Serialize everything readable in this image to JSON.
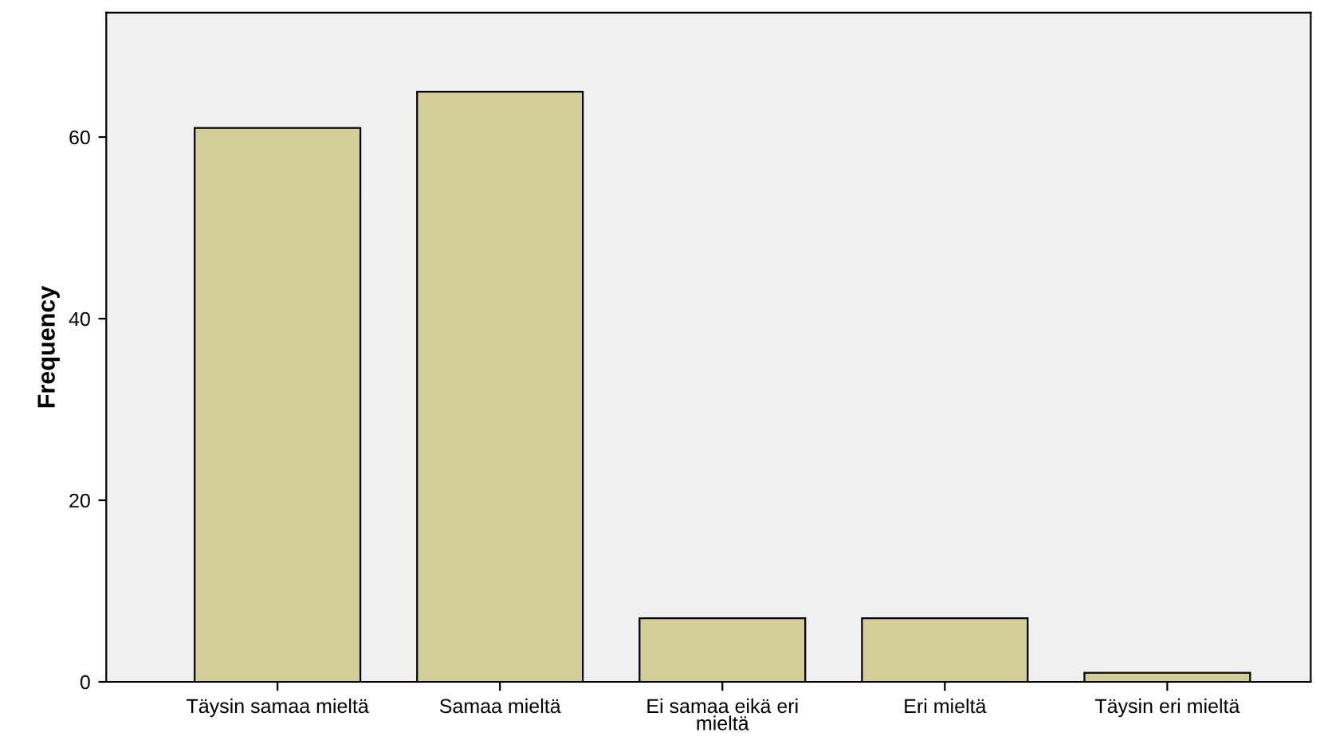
{
  "chart_data": {
    "type": "bar",
    "ylabel": "Frequency",
    "categories": [
      "Täysin samaa mieltä",
      "Samaa mieltä",
      "Ei samaa eikä eri mieltä",
      "Eri mieltä",
      "Täysin eri mieltä"
    ],
    "values": [
      61,
      65,
      7,
      7,
      1
    ],
    "color": "#d3ce97",
    "ylim": [
      0,
      73.7
    ],
    "yticks": [
      0,
      20,
      40,
      60
    ],
    "grid": false
  }
}
